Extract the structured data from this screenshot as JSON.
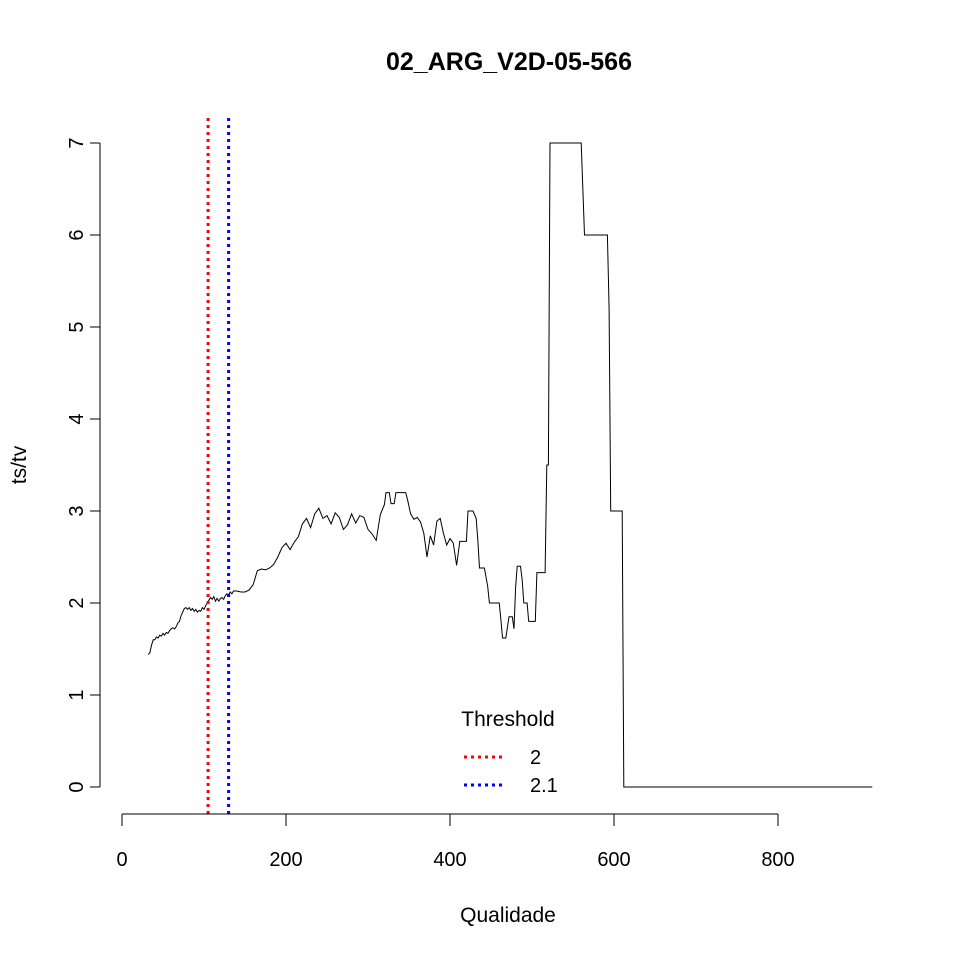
{
  "chart_data": {
    "type": "line",
    "title": "02_ARG_V2D-05-566",
    "xlabel": "Qualidade",
    "ylabel": "ts/tv",
    "xlim": [
      0,
      920
    ],
    "ylim": [
      0,
      7
    ],
    "x_ticks": [
      "0",
      "200",
      "400",
      "600",
      "800"
    ],
    "y_ticks": [
      "0",
      "1",
      "2",
      "3",
      "4",
      "5",
      "6",
      "7"
    ],
    "x_tick_values": [
      0,
      200,
      400,
      600,
      800
    ],
    "y_tick_values": [
      0,
      1,
      2,
      3,
      4,
      5,
      6,
      7
    ],
    "grid": false,
    "legend_position": "bottom-center",
    "series": [
      {
        "color": "#000000",
        "points": [
          [
            32,
            1.44
          ],
          [
            34,
            1.46
          ],
          [
            36,
            1.54
          ],
          [
            38,
            1.6
          ],
          [
            40,
            1.6
          ],
          [
            42,
            1.63
          ],
          [
            44,
            1.62
          ],
          [
            46,
            1.65
          ],
          [
            48,
            1.64
          ],
          [
            50,
            1.67
          ],
          [
            52,
            1.65
          ],
          [
            54,
            1.68
          ],
          [
            56,
            1.67
          ],
          [
            58,
            1.7
          ],
          [
            60,
            1.72
          ],
          [
            62,
            1.73
          ],
          [
            64,
            1.72
          ],
          [
            66,
            1.74
          ],
          [
            68,
            1.78
          ],
          [
            70,
            1.8
          ],
          [
            72,
            1.86
          ],
          [
            74,
            1.9
          ],
          [
            76,
            1.94
          ],
          [
            78,
            1.95
          ],
          [
            80,
            1.93
          ],
          [
            82,
            1.95
          ],
          [
            84,
            1.92
          ],
          [
            86,
            1.94
          ],
          [
            88,
            1.91
          ],
          [
            90,
            1.93
          ],
          [
            92,
            1.9
          ],
          [
            94,
            1.92
          ],
          [
            96,
            1.91
          ],
          [
            98,
            1.95
          ],
          [
            100,
            1.93
          ],
          [
            102,
            1.97
          ],
          [
            104,
            2.0
          ],
          [
            106,
            2.03
          ],
          [
            108,
            2.06
          ],
          [
            110,
            2.04
          ],
          [
            112,
            2.07
          ],
          [
            114,
            2.02
          ],
          [
            116,
            2.05
          ],
          [
            118,
            2.02
          ],
          [
            120,
            2.05
          ],
          [
            122,
            2.06
          ],
          [
            124,
            2.04
          ],
          [
            126,
            2.08
          ],
          [
            128,
            2.1
          ],
          [
            130,
            2.09
          ],
          [
            132,
            2.12
          ],
          [
            134,
            2.1
          ],
          [
            136,
            2.13
          ],
          [
            140,
            2.13
          ],
          [
            145,
            2.12
          ],
          [
            150,
            2.12
          ],
          [
            155,
            2.14
          ],
          [
            160,
            2.2
          ],
          [
            165,
            2.35
          ],
          [
            170,
            2.37
          ],
          [
            175,
            2.36
          ],
          [
            180,
            2.38
          ],
          [
            185,
            2.42
          ],
          [
            190,
            2.5
          ],
          [
            195,
            2.6
          ],
          [
            200,
            2.65
          ],
          [
            205,
            2.58
          ],
          [
            210,
            2.66
          ],
          [
            215,
            2.72
          ],
          [
            220,
            2.86
          ],
          [
            225,
            2.92
          ],
          [
            230,
            2.82
          ],
          [
            235,
            2.97
          ],
          [
            240,
            3.03
          ],
          [
            245,
            2.92
          ],
          [
            250,
            2.95
          ],
          [
            255,
            2.86
          ],
          [
            260,
            2.98
          ],
          [
            265,
            2.93
          ],
          [
            270,
            2.8
          ],
          [
            275,
            2.85
          ],
          [
            280,
            2.97
          ],
          [
            285,
            2.87
          ],
          [
            290,
            2.95
          ],
          [
            295,
            2.93
          ],
          [
            300,
            2.8
          ],
          [
            305,
            2.75
          ],
          [
            310,
            2.68
          ],
          [
            315,
            2.96
          ],
          [
            320,
            3.07
          ],
          [
            322,
            3.2
          ],
          [
            326,
            3.2
          ],
          [
            328,
            3.08
          ],
          [
            332,
            3.08
          ],
          [
            334,
            3.2
          ],
          [
            346,
            3.2
          ],
          [
            348,
            3.13
          ],
          [
            352,
            2.97
          ],
          [
            356,
            2.91
          ],
          [
            360,
            2.93
          ],
          [
            364,
            2.88
          ],
          [
            368,
            2.76
          ],
          [
            372,
            2.5
          ],
          [
            376,
            2.73
          ],
          [
            380,
            2.63
          ],
          [
            384,
            2.89
          ],
          [
            388,
            2.92
          ],
          [
            392,
            2.76
          ],
          [
            396,
            2.63
          ],
          [
            400,
            2.7
          ],
          [
            404,
            2.65
          ],
          [
            408,
            2.41
          ],
          [
            412,
            2.67
          ],
          [
            420,
            2.67
          ],
          [
            422,
            3.0
          ],
          [
            428,
            3.0
          ],
          [
            432,
            2.92
          ],
          [
            434,
            2.67
          ],
          [
            436,
            2.38
          ],
          [
            442,
            2.38
          ],
          [
            446,
            2.18
          ],
          [
            448,
            2.0
          ],
          [
            460,
            2.0
          ],
          [
            462,
            1.83
          ],
          [
            464,
            1.62
          ],
          [
            468,
            1.62
          ],
          [
            472,
            1.85
          ],
          [
            476,
            1.85
          ],
          [
            478,
            1.72
          ],
          [
            480,
            2.17
          ],
          [
            482,
            2.4
          ],
          [
            486,
            2.4
          ],
          [
            488,
            2.25
          ],
          [
            490,
            2.0
          ],
          [
            494,
            2.0
          ],
          [
            496,
            1.8
          ],
          [
            504,
            1.8
          ],
          [
            506,
            2.33
          ],
          [
            516,
            2.33
          ],
          [
            518,
            3.5
          ],
          [
            520,
            3.5
          ],
          [
            522,
            7.0
          ],
          [
            560,
            7.0
          ],
          [
            564,
            6.0
          ],
          [
            592,
            6.0
          ],
          [
            594,
            5.2
          ],
          [
            596,
            3.0
          ],
          [
            610,
            3.0
          ],
          [
            612,
            0.0
          ],
          [
            915,
            0.0
          ]
        ]
      }
    ],
    "thresholds": [
      {
        "name": "2",
        "x": 105,
        "color": "#ff0000"
      },
      {
        "name": "2.1",
        "x": 130,
        "color": "#0000ff"
      }
    ],
    "legend": {
      "title": "Threshold",
      "entries": [
        {
          "label": "2",
          "color": "#ff0000"
        },
        {
          "label": "2.1",
          "color": "#0000ff"
        }
      ]
    }
  }
}
